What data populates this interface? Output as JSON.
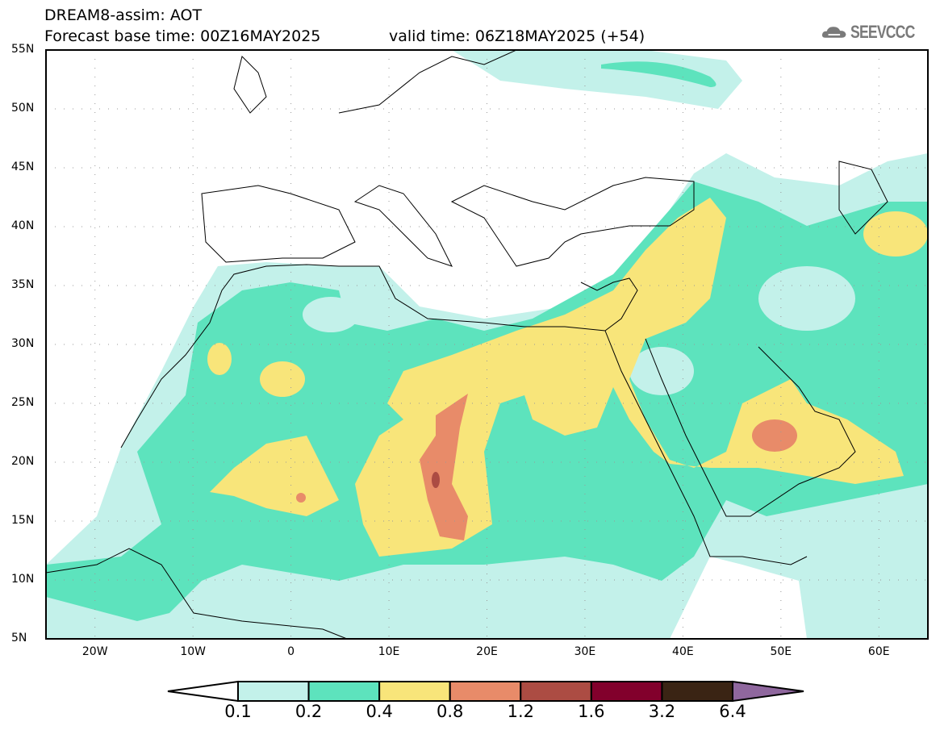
{
  "header": {
    "title": "DREAM8-assim: AOT",
    "base_time": "Forecast base time: 00Z16MAY2025",
    "valid_time": "valid time: 06Z18MAY2025 (+54)",
    "logo": "SEEVCCC"
  },
  "axes": {
    "lat_labels": [
      "55N",
      "50N",
      "45N",
      "40N",
      "35N",
      "30N",
      "25N",
      "20N",
      "15N",
      "10N",
      "5N"
    ],
    "lon_labels": [
      "20W",
      "10W",
      "0",
      "10E",
      "20E",
      "30E",
      "40E",
      "50E",
      "60E"
    ]
  },
  "legend": {
    "labels": [
      "0.1",
      "0.2",
      "0.4",
      "0.8",
      "1.2",
      "1.6",
      "3.2",
      "6.4"
    ],
    "colors": [
      "#ffffff",
      "#c3f1ea",
      "#5de3bd",
      "#f8e57a",
      "#e88b69",
      "#ac4c43",
      "#82002c",
      "#3a2414",
      "#8f679e"
    ]
  },
  "colors": {
    "cyan": "#c3f1ea",
    "green": "#5de3bd",
    "yellow": "#f8e57a",
    "orange": "#e88b69",
    "red": "#ac4c43"
  }
}
